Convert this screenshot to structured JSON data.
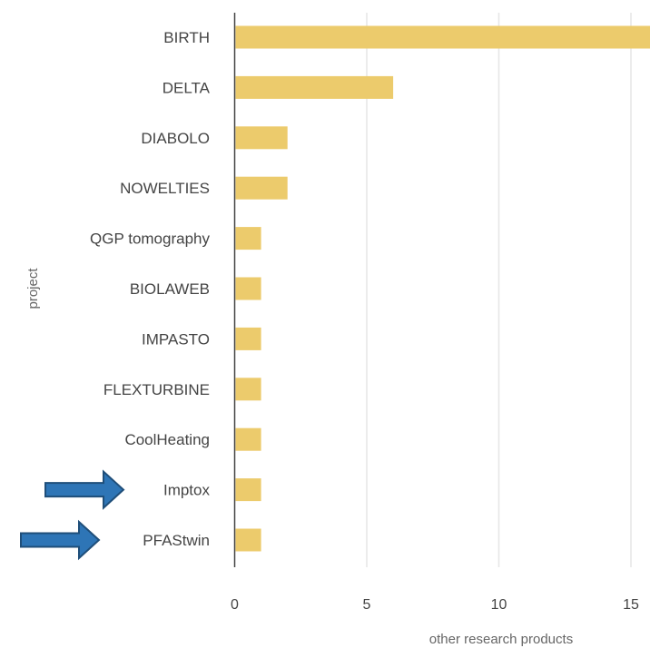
{
  "chart_data": {
    "type": "bar",
    "orientation": "horizontal",
    "categories": [
      "BIRTH",
      "DELTA",
      "DIABOLO",
      "NOWELTIES",
      "QGP tomography",
      "BIOLAWEB",
      "IMPASTO",
      "FLEXTURBINE",
      "CoolHeating",
      "Imptox",
      "PFAStwin"
    ],
    "values": [
      16,
      6,
      2,
      2,
      1,
      1,
      1,
      1,
      1,
      1,
      1
    ],
    "xlabel": "other research products",
    "ylabel": "project",
    "xticks": [
      0,
      5,
      10,
      15
    ],
    "xlim": [
      0,
      15.5
    ],
    "grid": "vertical",
    "bar_color": "#eccb6c",
    "annotations": [
      {
        "kind": "arrow",
        "points_to": "Imptox",
        "color": "#2e75b6"
      },
      {
        "kind": "arrow",
        "points_to": "PFAStwin",
        "color": "#2e75b6"
      }
    ]
  }
}
